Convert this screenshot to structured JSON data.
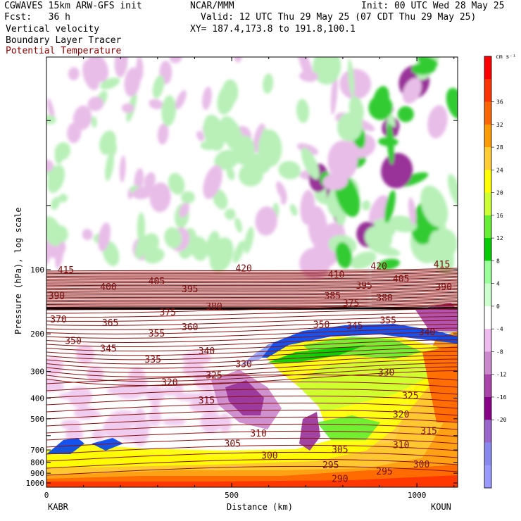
{
  "header": {
    "model": "CGWAVES 15km ARW-GFS init",
    "org": "NCAR/MMM",
    "init": "Init: 00 UTC Wed 28 May 25",
    "fcst": "Fcst:   36 h",
    "valid": "Valid: 12 UTC Thu 29 May 25 (07 CDT Thu 29 May 25)",
    "field1": "Vertical velocity",
    "xy": "XY= 187.4,173.8 to 191.8,100.1",
    "field2": "Boundary Layer Tracer",
    "field3": "Potential Temperature",
    "field3_color": "#8b0000"
  },
  "chart_data": {
    "type": "cross-section contour",
    "xlabel": "Distance (km)",
    "ylabel": "Pressure (hPa), log scale",
    "xlim": [
      0,
      1110
    ],
    "x_ticks": [
      0,
      500,
      1000
    ],
    "y_ticks": [
      100,
      200,
      300,
      400,
      500,
      600,
      700,
      800,
      900,
      1000
    ],
    "y_tick_labels": [
      "100",
      "200",
      "300",
      "400",
      "500",
      "",
      "700",
      "800",
      "900",
      "1000"
    ],
    "left_station": "KABR",
    "right_station": "KOUN",
    "colorbar": {
      "unit": "cm s⁻¹",
      "levels": [
        36,
        32,
        28,
        24,
        20,
        16,
        12,
        8,
        4,
        0,
        -4,
        -8,
        -12,
        -16,
        -20
      ],
      "colors": [
        "#ff0000",
        "#ff3300",
        "#ff6600",
        "#ff9900",
        "#ffcc33",
        "#ffff00",
        "#ccff33",
        "#66ee33",
        "#00cc00",
        "#99ff99",
        "#ccffcc",
        "#ffffff",
        "#eebbee",
        "#cc88cc",
        "#aa44aa",
        "#880088",
        "#9966cc",
        "#8888ee",
        "#9999ff"
      ]
    },
    "theta_labels": [
      {
        "v": "415",
        "x": 30,
        "p": 100
      },
      {
        "v": "420",
        "x": 510,
        "p": 98
      },
      {
        "v": "420",
        "x": 875,
        "p": 96
      },
      {
        "v": "415",
        "x": 1045,
        "p": 94
      },
      {
        "v": "410",
        "x": 760,
        "p": 105
      },
      {
        "v": "405",
        "x": 275,
        "p": 113
      },
      {
        "v": "405",
        "x": 935,
        "p": 110
      },
      {
        "v": "400",
        "x": 145,
        "p": 120
      },
      {
        "v": "395",
        "x": 365,
        "p": 123
      },
      {
        "v": "395",
        "x": 835,
        "p": 118
      },
      {
        "v": "390",
        "x": 5,
        "p": 132
      },
      {
        "v": "390",
        "x": 1050,
        "p": 120
      },
      {
        "v": "385",
        "x": 750,
        "p": 132
      },
      {
        "v": "380",
        "x": 430,
        "p": 148
      },
      {
        "v": "380",
        "x": 890,
        "p": 135
      },
      {
        "v": "375",
        "x": 305,
        "p": 158
      },
      {
        "v": "375",
        "x": 800,
        "p": 143
      },
      {
        "v": "370",
        "x": 10,
        "p": 170
      },
      {
        "v": "365",
        "x": 150,
        "p": 177
      },
      {
        "v": "360",
        "x": 365,
        "p": 185
      },
      {
        "v": "355",
        "x": 275,
        "p": 198
      },
      {
        "v": "355",
        "x": 900,
        "p": 172
      },
      {
        "v": "350",
        "x": 50,
        "p": 215
      },
      {
        "v": "350",
        "x": 720,
        "p": 180
      },
      {
        "v": "345",
        "x": 145,
        "p": 233
      },
      {
        "v": "345",
        "x": 810,
        "p": 182
      },
      {
        "v": "340",
        "x": 410,
        "p": 240
      },
      {
        "v": "340",
        "x": 1005,
        "p": 195
      },
      {
        "v": "335",
        "x": 265,
        "p": 263
      },
      {
        "v": "330",
        "x": 510,
        "p": 276
      },
      {
        "v": "330",
        "x": 895,
        "p": 302
      },
      {
        "v": "325",
        "x": 430,
        "p": 312
      },
      {
        "v": "325",
        "x": 960,
        "p": 388
      },
      {
        "v": "320",
        "x": 310,
        "p": 336
      },
      {
        "v": "320",
        "x": 935,
        "p": 475
      },
      {
        "v": "315",
        "x": 410,
        "p": 408
      },
      {
        "v": "315",
        "x": 1010,
        "p": 568
      },
      {
        "v": "310",
        "x": 550,
        "p": 583
      },
      {
        "v": "310",
        "x": 935,
        "p": 660
      },
      {
        "v": "305",
        "x": 480,
        "p": 650
      },
      {
        "v": "305",
        "x": 770,
        "p": 695
      },
      {
        "v": "300",
        "x": 580,
        "p": 740
      },
      {
        "v": "300",
        "x": 990,
        "p": 815
      },
      {
        "v": "295",
        "x": 745,
        "p": 820
      },
      {
        "v": "295",
        "x": 890,
        "p": 880
      },
      {
        "v": "290",
        "x": 770,
        "p": 950
      }
    ]
  }
}
